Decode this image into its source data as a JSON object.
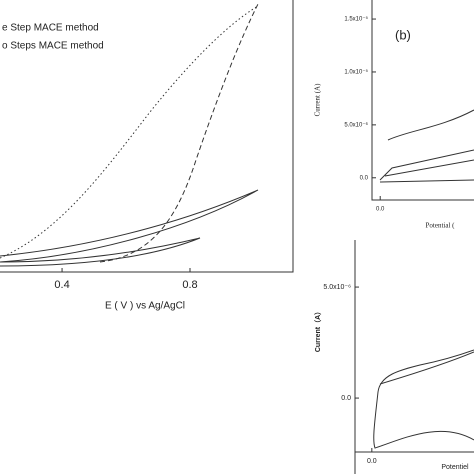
{
  "chart_data": [
    {
      "type": "line",
      "legend": [
        "e Step MACE method",
        "o Steps MACE method"
      ],
      "x_label": "E ( V )  vs Ag/AgCl",
      "xlim": [
        0.206,
        1.122
      ],
      "xticks": [
        0.4,
        0.8
      ]
    },
    {
      "type": "line",
      "panel_label": "(b)",
      "y_label": "Current (A)",
      "x_label": "Potential (",
      "xlim": [
        -0.07,
        0.8
      ],
      "xticks": [
        {
          "value": 0,
          "label": "0.0"
        }
      ],
      "ylim": [
        -2.1e-06,
        1.68e-05
      ],
      "yticks": [
        {
          "value": 0,
          "label": "0.0"
        },
        {
          "value": 5e-06,
          "label": "5.0x10⁻⁶"
        },
        {
          "value": 1e-05,
          "label": "1.0x10⁻⁵"
        },
        {
          "value": 1.5e-05,
          "label": "1.5x10⁻⁵"
        }
      ]
    },
    {
      "type": "line",
      "y_label": "Current（A）",
      "x_label": "Potentiel",
      "xlim": [
        -0.14,
        0.85
      ],
      "xticks": [
        {
          "value": 0,
          "label": "0.0"
        }
      ],
      "ylim": [
        -3.42e-06,
        7.12e-06
      ],
      "yticks": [
        {
          "value": 0,
          "label": "0.0"
        },
        {
          "value": 5e-06,
          "label": "5.0x10⁻⁶"
        }
      ]
    }
  ]
}
